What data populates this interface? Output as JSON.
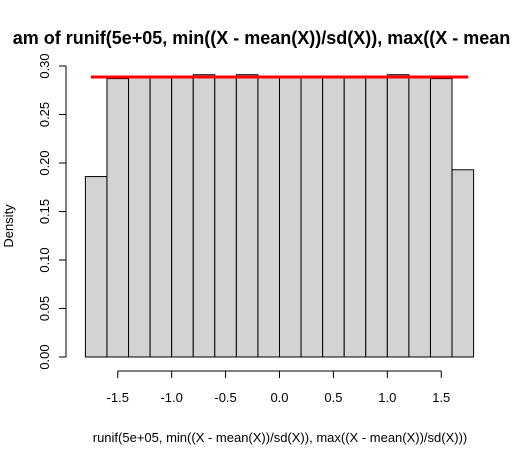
{
  "chart_data": {
    "type": "bar",
    "subtype": "histogram",
    "title": "am of runif(5e+05, min((X - mean(X))/sd(X)), max((X - mean",
    "xlabel": "runif(5e+05, min((X - mean(X))/sd(X)), max((X - mean(X))/sd(X)))",
    "ylabel": "Density",
    "xlim": [
      -1.85,
      1.85
    ],
    "ylim": [
      0,
      0.3
    ],
    "x_ticks": [
      -1.5,
      -1.0,
      -0.5,
      0.0,
      0.5,
      1.0,
      1.5
    ],
    "x_tick_labels": [
      "-1.5",
      "-1.0",
      "-0.5",
      "0.0",
      "0.5",
      "1.0",
      "1.5"
    ],
    "y_ticks": [
      0.0,
      0.05,
      0.1,
      0.15,
      0.2,
      0.25,
      0.3
    ],
    "y_tick_labels": [
      "0.00",
      "0.05",
      "0.10",
      "0.15",
      "0.20",
      "0.25",
      "0.30"
    ],
    "bins": [
      {
        "x0": -1.8,
        "x1": -1.6,
        "density": 0.186
      },
      {
        "x0": -1.6,
        "x1": -1.4,
        "density": 0.287
      },
      {
        "x0": -1.4,
        "x1": -1.2,
        "density": 0.289
      },
      {
        "x0": -1.2,
        "x1": -1.0,
        "density": 0.289
      },
      {
        "x0": -1.0,
        "x1": -0.8,
        "density": 0.289
      },
      {
        "x0": -0.8,
        "x1": -0.6,
        "density": 0.291
      },
      {
        "x0": -0.6,
        "x1": -0.4,
        "density": 0.289
      },
      {
        "x0": -0.4,
        "x1": -0.2,
        "density": 0.291
      },
      {
        "x0": -0.2,
        "x1": 0.0,
        "density": 0.289
      },
      {
        "x0": 0.0,
        "x1": 0.2,
        "density": 0.289
      },
      {
        "x0": 0.2,
        "x1": 0.4,
        "density": 0.289
      },
      {
        "x0": 0.4,
        "x1": 0.6,
        "density": 0.289
      },
      {
        "x0": 0.6,
        "x1": 0.8,
        "density": 0.289
      },
      {
        "x0": 0.8,
        "x1": 1.0,
        "density": 0.289
      },
      {
        "x0": 1.0,
        "x1": 1.2,
        "density": 0.291
      },
      {
        "x0": 1.2,
        "x1": 1.4,
        "density": 0.289
      },
      {
        "x0": 1.4,
        "x1": 1.6,
        "density": 0.287
      },
      {
        "x0": 1.6,
        "x1": 1.8,
        "density": 0.193
      }
    ],
    "overlay_line": {
      "x0": -1.75,
      "x1": 1.75,
      "y": 0.2887,
      "color": "#ff0000"
    },
    "bar_fill": "#d3d3d3",
    "bar_stroke": "#000000",
    "grid": false
  }
}
